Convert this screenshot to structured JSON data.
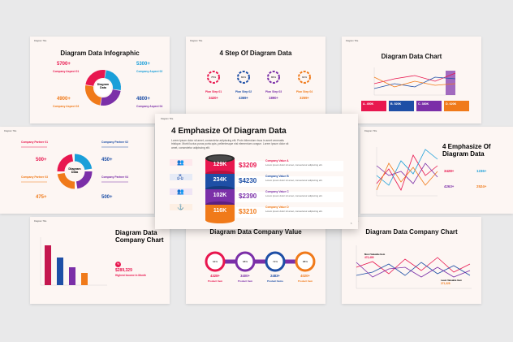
{
  "s1": {
    "header": "Diagram Title",
    "title": "Diagram Data Infographic",
    "center": "Diagram\nData",
    "values": [
      "5700+",
      "5300+",
      "4900+",
      "4800+"
    ],
    "labels": [
      "Company Aspect 01",
      "Company Aspect 02",
      "Company Aspect 03",
      "Company Aspect 04"
    ],
    "colors": [
      "#e8174f",
      "#1a9fd9",
      "#f07a1a",
      "#7b2fa8"
    ]
  },
  "s2": {
    "header": "Diagram Title",
    "title": "4 Step Of Diagram Data",
    "pcts": [
      "75%",
      "82%",
      "86%",
      "91%"
    ],
    "steps": [
      "Plan Step 01",
      "Plan Step 02",
      "Plan Step 03",
      "Plan Step 04"
    ],
    "values": [
      "3420+",
      "4369+",
      "1890+",
      "3259+"
    ],
    "colors": [
      "#e8174f",
      "#1e4fa6",
      "#7b2fa8",
      "#f07a1a"
    ]
  },
  "s3": {
    "header": "Diagram Title",
    "title": "Diagram Data Chart",
    "boxes": [
      "A. 450K",
      "B. 520K",
      "C. 380K",
      "D. 620K"
    ],
    "colors": [
      "#e8174f",
      "#1e4fa6",
      "#7b2fa8",
      "#f07a1a"
    ]
  },
  "s4": {
    "header": "Diagram Title",
    "center": "Diagram\nData",
    "labels": [
      "Company Partner 01",
      "Company Partner 02",
      "Company Partner 03",
      "Company Partner 04"
    ],
    "values": [
      "500+",
      "450+",
      "475+",
      "500+"
    ]
  },
  "s5": {
    "header": "Diagram Title",
    "title": "4 Emphasize Of Diagram Data",
    "desc": "Lorem ipsum dolor sit amet, consectetur adipiscing elit. Proin bibendum risus in amet venenatis tristique. Morbi luctus purus porta quis, pellentesque nisl elementum congue. Lorem ipsum dolor sit amet, consectetur adipiscing elit.",
    "cyl": [
      "129K",
      "234K",
      "102K",
      "116K"
    ],
    "amounts": [
      "$3209",
      "$4230",
      "$2390",
      "$3210"
    ],
    "values": [
      "Company Value A",
      "Company Value B",
      "Company Value C",
      "Company Value D"
    ],
    "line": "Lorem ipsum dolor sit amet, consectetur adipiscing elit.",
    "colors": [
      "#e8174f",
      "#1e4fa6",
      "#7b2fa8",
      "#f07a1a"
    ],
    "page": "5"
  },
  "s6": {
    "header": "Diagram Title",
    "title": "4 Emphasize Of\nDiagram Data",
    "values": [
      "3428+",
      "1236+",
      "4263+",
      "2524+"
    ],
    "colors": [
      "#e8174f",
      "#1a9fd9",
      "#7b2fa8",
      "#f07a1a"
    ]
  },
  "s7": {
    "header": "Diagram Title",
    "title": "Diagram Data\nCompany Chart",
    "amount": "$289,329",
    "caption": "Highest Income In Month",
    "badge": "%"
  },
  "s8": {
    "header": "Diagram Title",
    "title": "Diagram Data Company Value",
    "pcts": [
      "64%",
      "68%",
      "72%",
      "88%"
    ],
    "values": [
      "4328+",
      "3400+",
      "2483+",
      "4020+"
    ],
    "names": [
      "Product Item",
      "Product Item",
      "Product Items",
      "Product Item"
    ],
    "colors": [
      "#e8174f",
      "#7b2fa8",
      "#1e4fa6",
      "#f07a1a"
    ]
  },
  "s9": {
    "header": "Diagram Title",
    "title": "Diagram Data Company Chart",
    "tag1": "Most Valuable Item",
    "tag1v": "473,489",
    "tag2": "Least Valuable Item",
    "tag2v": "271,328"
  }
}
